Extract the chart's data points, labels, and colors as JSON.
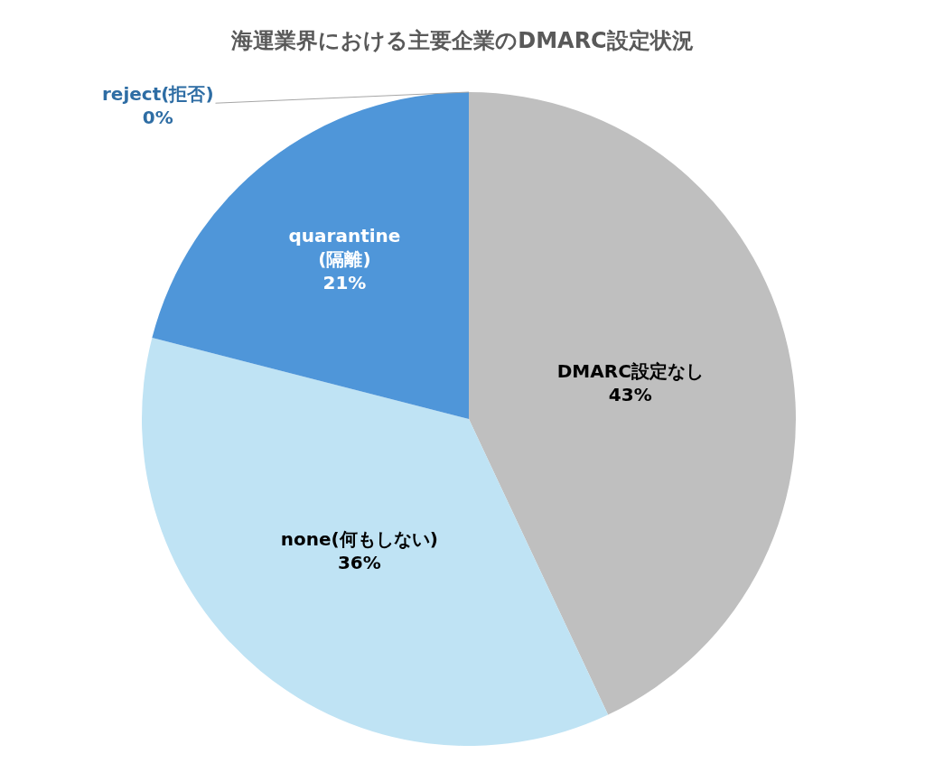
{
  "chart_data": {
    "type": "pie",
    "title": "海運業界における主要企業のDMARC設定状況",
    "categories": [
      "DMARC設定なし",
      "none(何もしない)",
      "quarantine\n(隔離)",
      "reject(拒否)"
    ],
    "values": [
      43,
      36,
      21,
      0
    ],
    "value_labels": [
      "43%",
      "36%",
      "21%",
      "0%"
    ],
    "colors": [
      "#bfbfbf",
      "#bfe3f4",
      "#4f96d9",
      "#2e6da4"
    ],
    "legend": false
  }
}
